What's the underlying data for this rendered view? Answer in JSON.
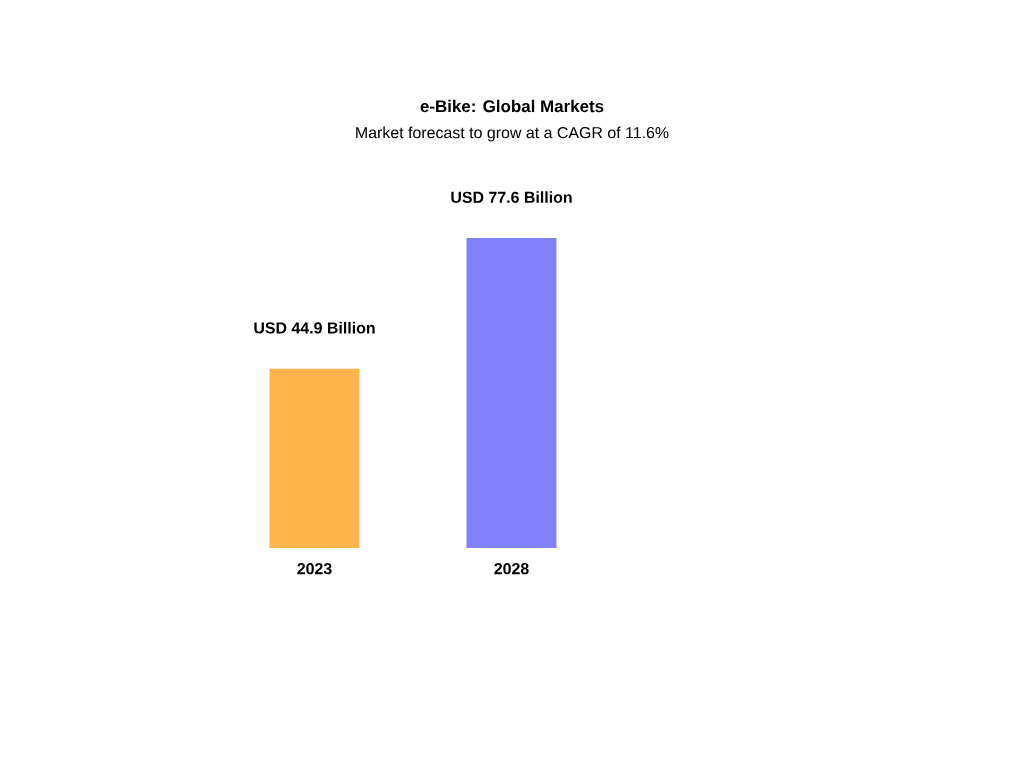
{
  "chart_data": {
    "type": "bar",
    "title": "e-Bike: Global Markets",
    "subtitle": "Market forecast to grow at a CAGR of 11.6%",
    "categories": [
      "2023",
      "2028"
    ],
    "values": [
      44.9,
      77.6
    ],
    "colors": [
      "#ffb44d",
      "#7f82fb"
    ],
    "value_labels": [
      "USD 44.9 Billion",
      "USD 77.6 Billion"
    ]
  }
}
